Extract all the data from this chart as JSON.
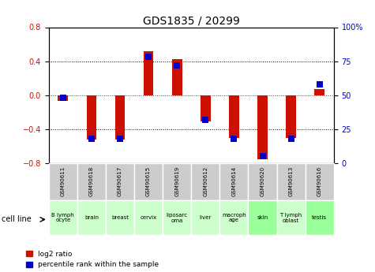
{
  "title": "GDS1835 / 20299",
  "samples": [
    "GSM90611",
    "GSM90618",
    "GSM90617",
    "GSM90615",
    "GSM90619",
    "GSM90612",
    "GSM90614",
    "GSM90620",
    "GSM90613",
    "GSM90616"
  ],
  "cell_lines": [
    "B lymph\nocyte",
    "brain",
    "breast",
    "cervix",
    "liposarc\noma",
    "liver",
    "macroph\nage",
    "skin",
    "T lymph\noblast",
    "testis"
  ],
  "cell_line_colors": [
    "#ccffcc",
    "#ccffcc",
    "#ccffcc",
    "#ccffcc",
    "#ccffcc",
    "#ccffcc",
    "#ccffcc",
    "#99ff99",
    "#ccffcc",
    "#99ff99"
  ],
  "log2_ratio": [
    -0.07,
    -0.52,
    -0.52,
    0.52,
    0.42,
    -0.31,
    -0.5,
    -0.75,
    -0.5,
    0.07
  ],
  "percentile_rank": [
    48,
    18,
    18,
    78,
    72,
    32,
    18,
    5,
    18,
    58
  ],
  "ylim_left": [
    -0.8,
    0.8
  ],
  "ylim_right": [
    0,
    100
  ],
  "yticks_left": [
    -0.8,
    -0.4,
    0,
    0.4,
    0.8
  ],
  "yticks_right": [
    0,
    25,
    50,
    75,
    100
  ],
  "bar_color_red": "#cc1100",
  "bar_color_blue": "#0000cc",
  "zero_line_color": "#cc1100",
  "bar_width": 0.35,
  "blue_marker_size": 6.0,
  "gsm_box_color": "#cccccc",
  "cell_line_label_color": "#ccffcc",
  "cell_line_strong_color": "#66dd66"
}
